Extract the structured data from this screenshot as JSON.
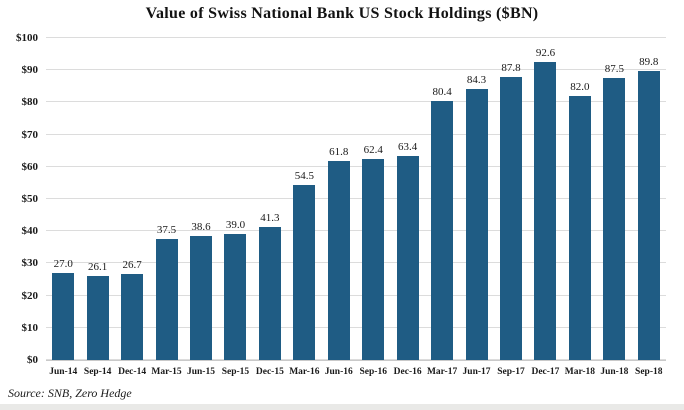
{
  "chart_data": {
    "type": "bar",
    "title": "Value of Swiss National Bank US Stock Holdings ($BN)",
    "categories": [
      "Jun-14",
      "Sep-14",
      "Dec-14",
      "Mar-15",
      "Jun-15",
      "Sep-15",
      "Dec-15",
      "Mar-16",
      "Jun-16",
      "Sep-16",
      "Dec-16",
      "Mar-17",
      "Jun-17",
      "Sep-17",
      "Dec-17",
      "Mar-18",
      "Jun-18",
      "Sep-18"
    ],
    "values": [
      27.0,
      26.1,
      26.7,
      37.5,
      38.6,
      39.0,
      41.3,
      54.5,
      61.8,
      62.4,
      63.4,
      80.4,
      84.3,
      87.8,
      92.6,
      82.0,
      87.5,
      89.8
    ],
    "value_label_decimals": 1,
    "xlabel": "",
    "ylabel": "",
    "ylim": [
      0,
      100
    ],
    "ytick_interval": 10,
    "ytick_labels": [
      "$0",
      "$10",
      "$20",
      "$30",
      "$40",
      "$50",
      "$60",
      "$70",
      "$80",
      "$90",
      "$100"
    ],
    "grid": true,
    "legend": false,
    "source": "Source: SNB, Zero Hedge",
    "colors": {
      "bar": "#1f5c84",
      "gridline": "#dcdcdc",
      "text": "#1a1a1a"
    }
  }
}
